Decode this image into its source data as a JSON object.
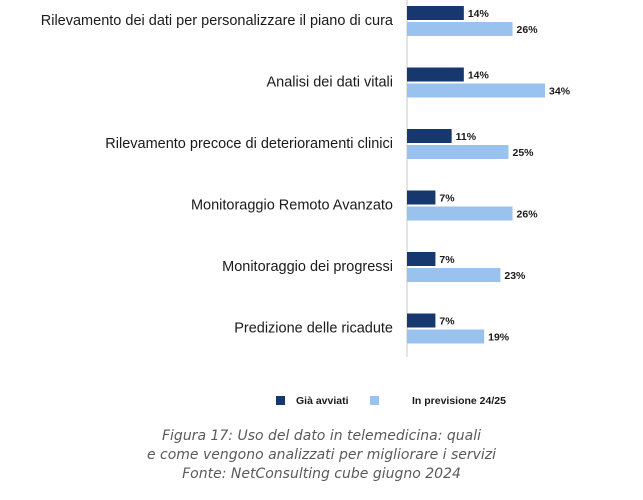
{
  "colors": {
    "started": "#17386e",
    "planned": "#9ac2ee",
    "axis": "#c8c8c8"
  },
  "chart_data": {
    "type": "bar",
    "orientation": "horizontal",
    "categories": [
      "Rilevamento dei dati per personalizzare il piano di cura",
      "Analisi dei dati vitali",
      "Rilevamento precoce di deterioramenti clinici",
      "Monitoraggio Remoto Avanzato",
      "Monitoraggio dei progressi",
      "Predizione delle ricadute"
    ],
    "series": [
      {
        "name": "Già avviati",
        "values": [
          14,
          14,
          11,
          7,
          7,
          7
        ],
        "labels": [
          "14%",
          "14%",
          "11%",
          "7%",
          "7%",
          "7%"
        ]
      },
      {
        "name": "In previsione 24/25",
        "values": [
          26,
          34,
          25,
          26,
          23,
          19
        ],
        "labels": [
          "26%",
          "34%",
          "25%",
          "26%",
          "23%",
          "19%"
        ]
      }
    ],
    "unit": "%",
    "xlim": [
      0,
      40
    ],
    "legend_position": "bottom"
  },
  "caption": {
    "line1": "Figura 17: Uso del dato in telemedicina: quali",
    "line2": "e come vengono analizzati per migliorare i servizi",
    "line3": "Fonte: NetConsulting cube giugno 2024"
  }
}
